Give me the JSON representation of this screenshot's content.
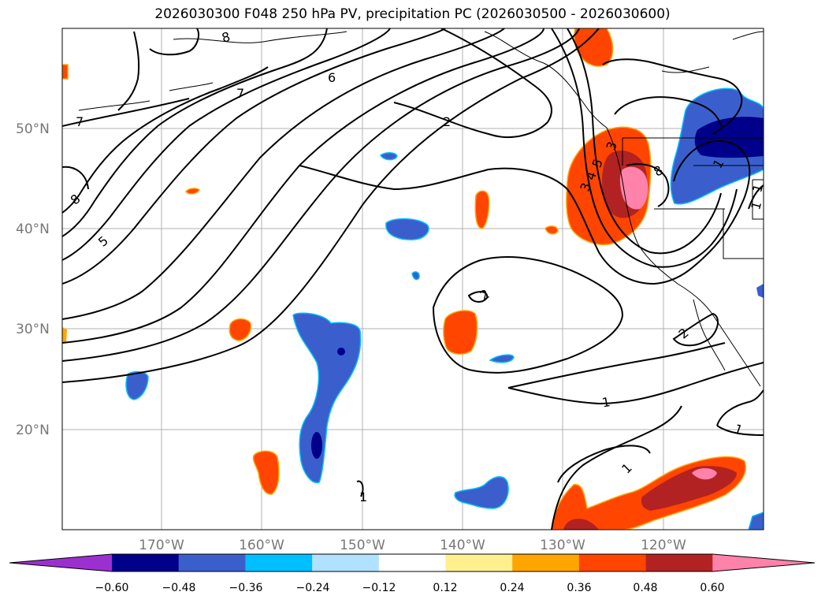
{
  "title": "2026030300 F048 250 hPa PV, precipitation PC (2026030500 - 2026030600)",
  "lat_labels": [
    "50°N",
    "40°N",
    "30°N",
    "20°N"
  ],
  "lon_labels": [
    "170°W",
    "160°W",
    "150°W",
    "140°W",
    "130°W",
    "120°W"
  ],
  "contour_labels": [
    "8",
    "6",
    "7",
    "7",
    "2",
    "8",
    "5",
    "3",
    "5",
    "4",
    "3",
    "8",
    "2",
    "1",
    "2",
    "1",
    "1",
    "1",
    "1",
    "1",
    "1"
  ],
  "colorbar": {
    "ticks": [
      "−0.60",
      "−0.48",
      "−0.36",
      "−0.24",
      "−0.12",
      "0.12",
      "0.24",
      "0.36",
      "0.48",
      "0.60"
    ],
    "colors": [
      "#9b30d0",
      "#00008b",
      "#3a5fcd",
      "#00bfff",
      "#b0e2ff",
      "#ffffff",
      "#fff08f",
      "#ffa500",
      "#ff4500",
      "#b22222",
      "#ff82ab"
    ]
  }
}
